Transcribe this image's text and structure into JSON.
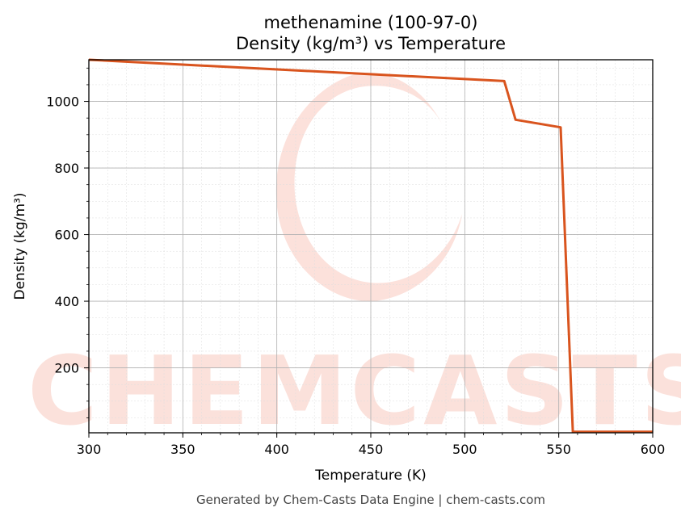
{
  "chart_data": {
    "type": "line",
    "title": [
      "methenamine (100-97-0)",
      "Density (kg/m³) vs Temperature"
    ],
    "xlabel": "Temperature (K)",
    "ylabel": "Density (kg/m³)",
    "xlim": [
      300,
      600
    ],
    "ylim": [
      5,
      1125
    ],
    "xticks": [
      300,
      350,
      400,
      450,
      500,
      550,
      600
    ],
    "yticks": [
      200,
      400,
      600,
      800,
      1000
    ],
    "grid": true,
    "series": [
      {
        "color": "#d9541e",
        "x": [
          300,
          521,
          527,
          551,
          557.5,
          600
        ],
        "y": [
          1125,
          1061,
          945,
          922,
          8,
          8
        ]
      }
    ]
  },
  "watermark": "CHEMCASTS",
  "footer": "Generated by Chem-Casts Data Engine | chem-casts.com"
}
